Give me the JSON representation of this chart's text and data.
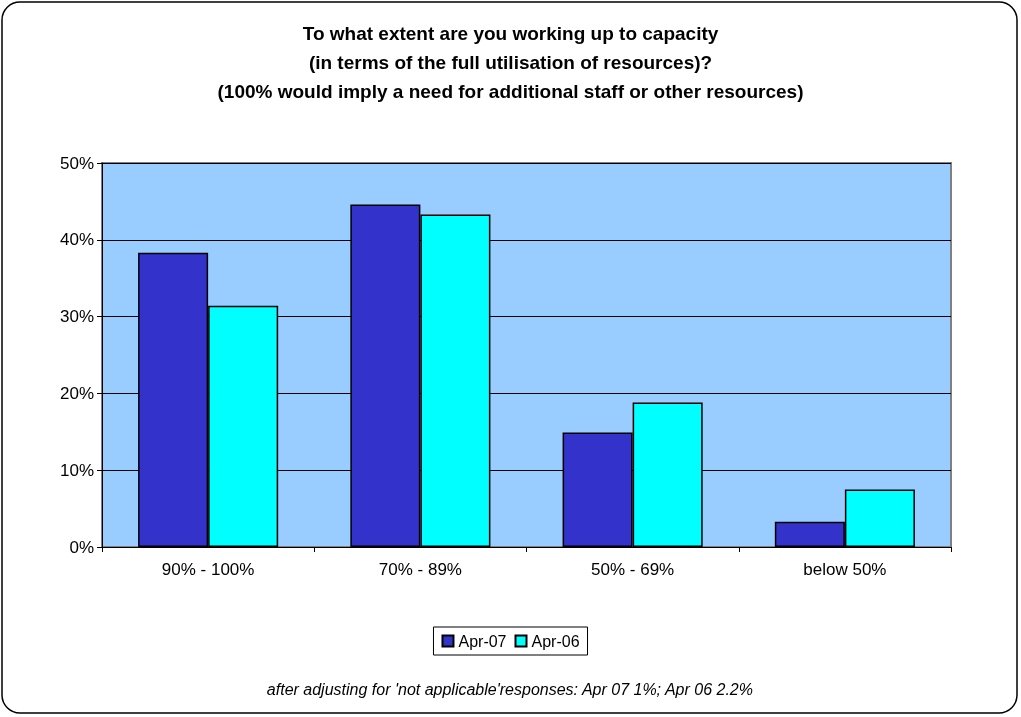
{
  "chart_data": {
    "type": "bar",
    "title": "To what extent are you working up to capacity\n(in terms of the full utilisation of resources)?\n(100% would imply a need for additional staff or other resources)",
    "categories": [
      "90% - 100%",
      "70% - 89%",
      "50% - 69%",
      "below 50%"
    ],
    "series": [
      {
        "name": "Apr-07",
        "color": "#3333cc",
        "values": [
          38.3,
          44.6,
          14.9,
          3.3
        ]
      },
      {
        "name": "Apr-06",
        "color": "#00ffff",
        "values": [
          31.4,
          43.3,
          18.8,
          7.5
        ]
      }
    ],
    "ylim": [
      0,
      50
    ],
    "yticks": [
      {
        "value": 0,
        "label": "0%"
      },
      {
        "value": 10,
        "label": "10%"
      },
      {
        "value": 20,
        "label": "20%"
      },
      {
        "value": 30,
        "label": "30%"
      },
      {
        "value": 40,
        "label": "40%"
      },
      {
        "value": 50,
        "label": "50%"
      }
    ],
    "grid": "y",
    "legend": "bottom",
    "annotations": [
      "after adjusting for 'not applicable'responses: Apr 07 1%; Apr 06 2.2%"
    ]
  }
}
